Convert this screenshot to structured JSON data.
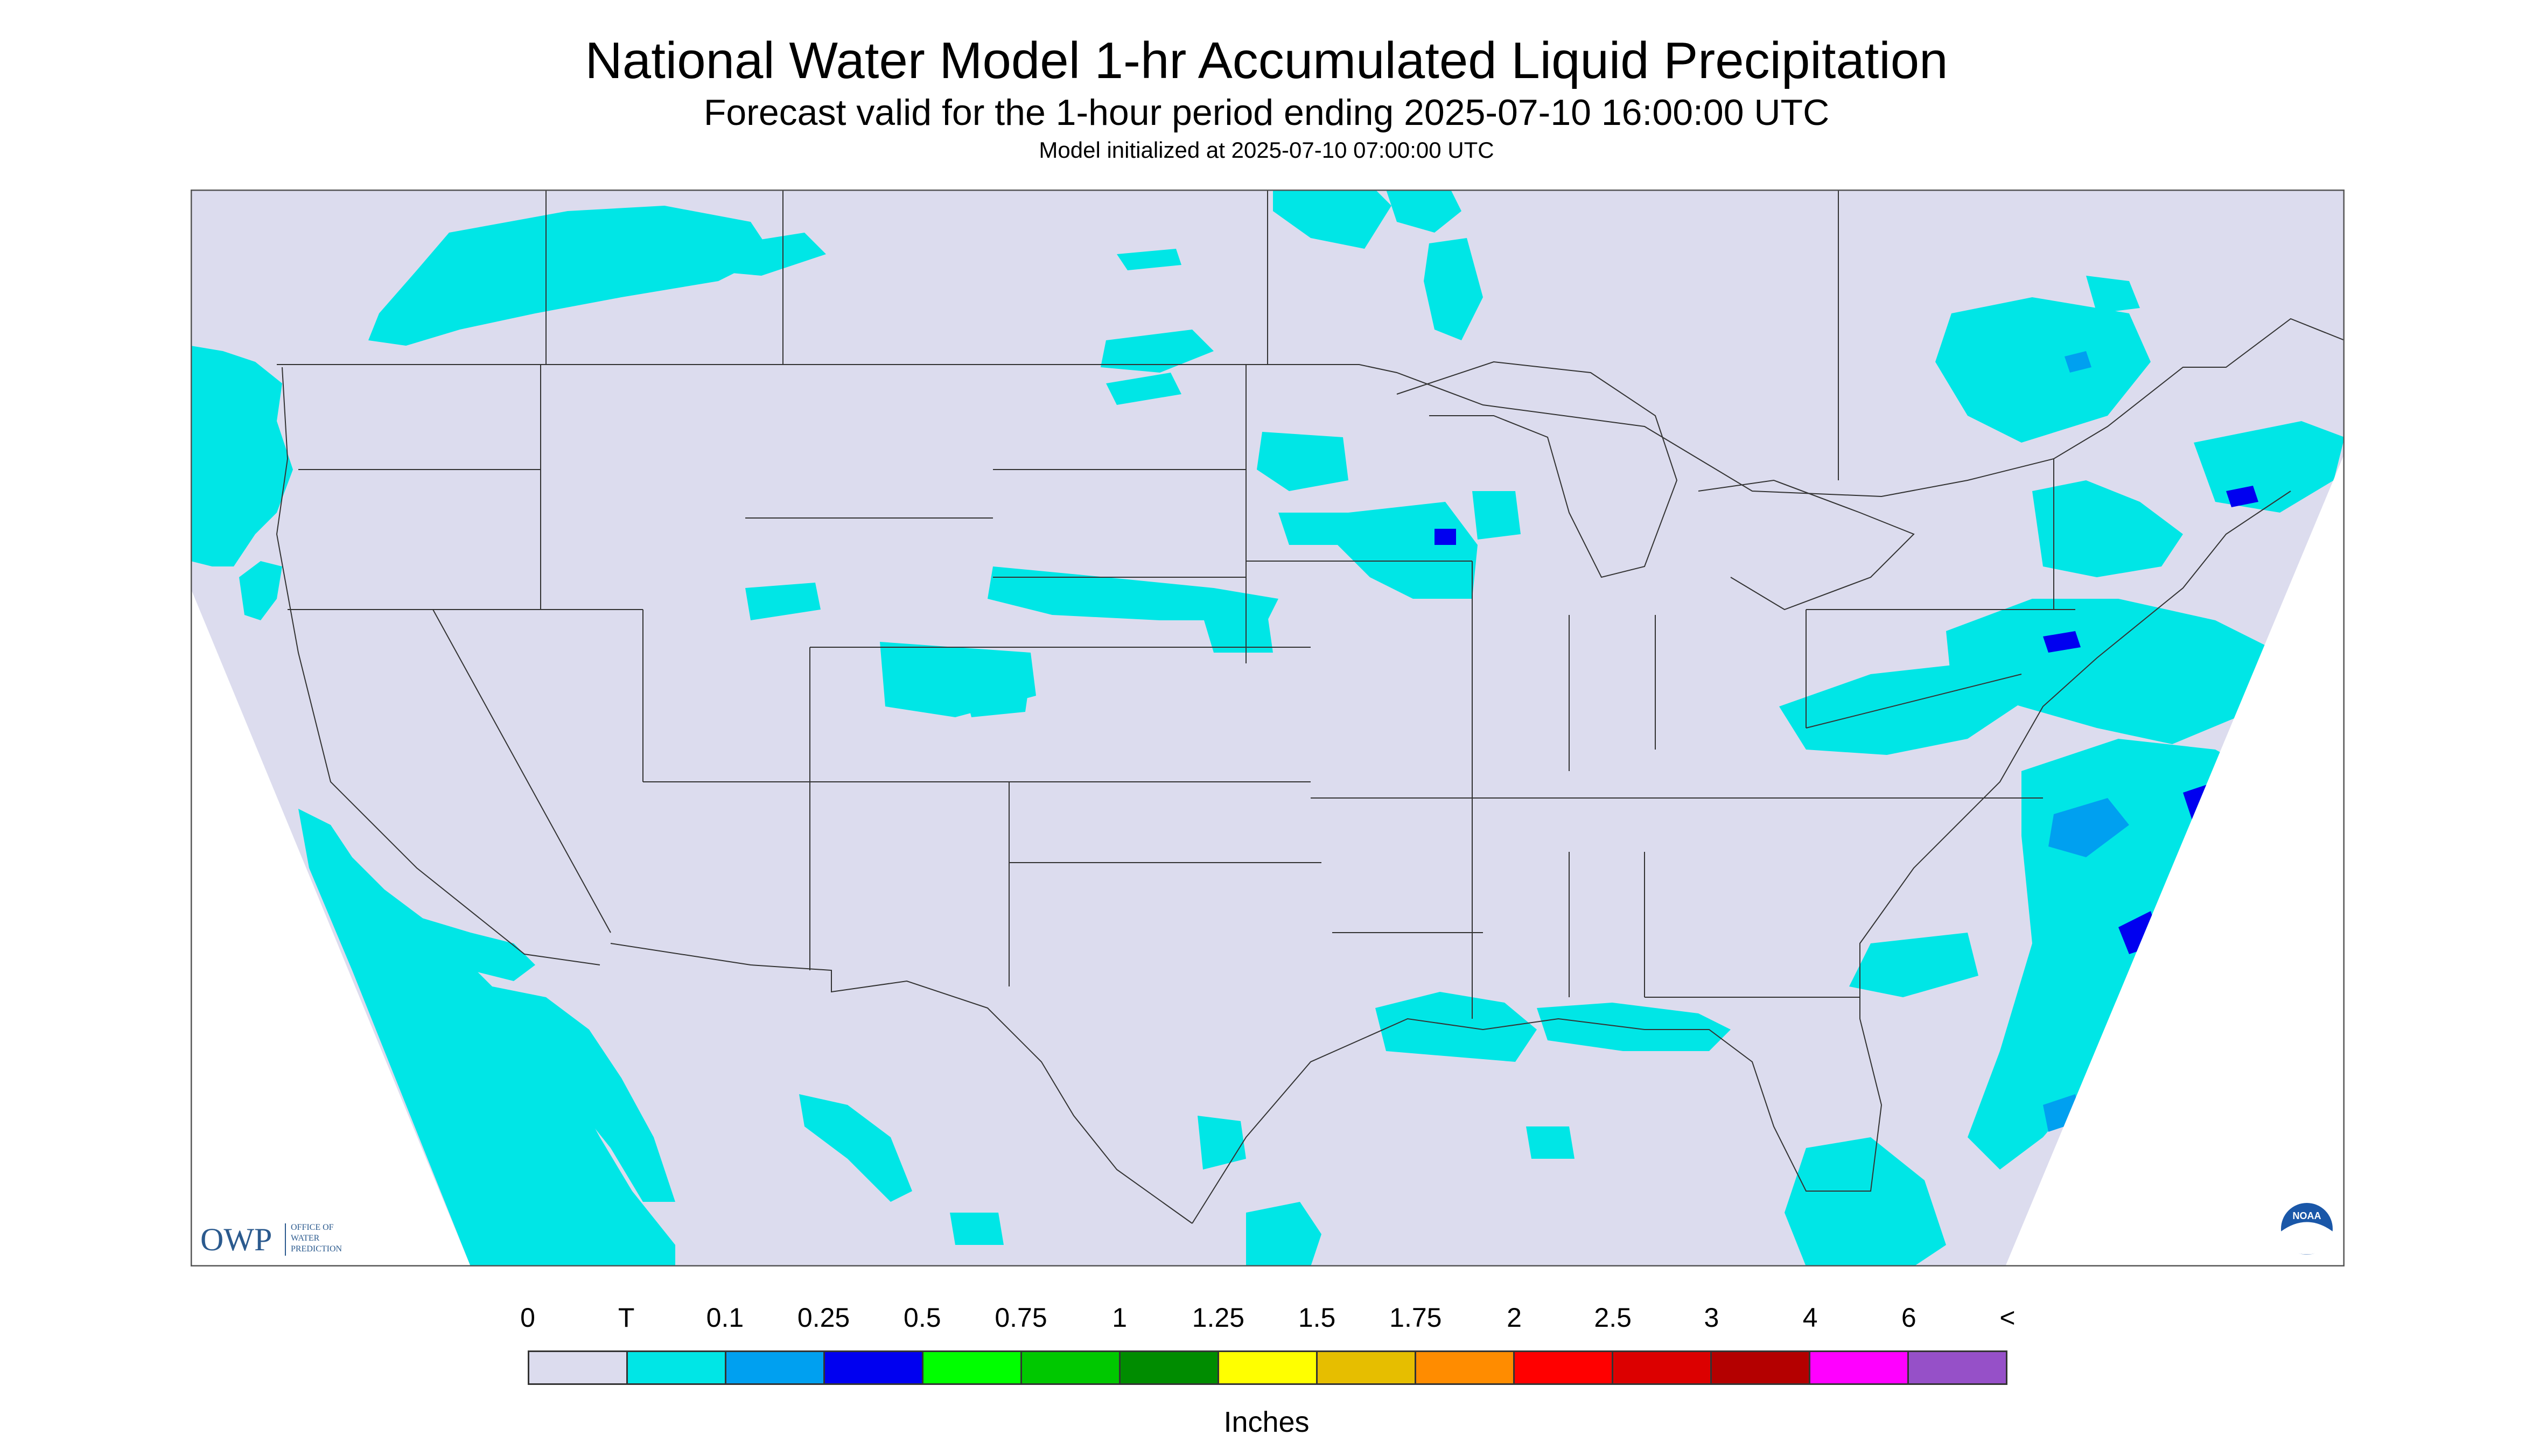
{
  "title": "National Water Model 1-hr Accumulated Liquid Precipitation",
  "subtitle": "Forecast valid for the 1-hour period ending 2025-07-10 16:00:00 UTC",
  "initialized": "Model initialized at 2025-07-10 07:00:00 UTC",
  "map": {
    "background_color": "#dcdcee",
    "outside_color": "#ffffff",
    "boundary_color": "#333333"
  },
  "logos": {
    "owp_text": "OWP",
    "owp_sub_lines": [
      "OFFICE OF",
      "WATER",
      "PREDICTION"
    ],
    "noaa_text": "NOAA"
  },
  "legend": {
    "labels": [
      "0",
      "T",
      "0.1",
      "0.25",
      "0.5",
      "0.75",
      "1",
      "1.25",
      "1.5",
      "1.75",
      "2",
      "2.5",
      "3",
      "4",
      "6",
      "<"
    ],
    "colors": [
      "#dcdcee",
      "#00e6e6",
      "#00a0f0",
      "#0000f0",
      "#00ff00",
      "#00c800",
      "#008c00",
      "#ffff00",
      "#e6be00",
      "#ff8c00",
      "#ff0000",
      "#dc0000",
      "#b40000",
      "#ff00ff",
      "#9650c8"
    ],
    "units": "Inches"
  }
}
